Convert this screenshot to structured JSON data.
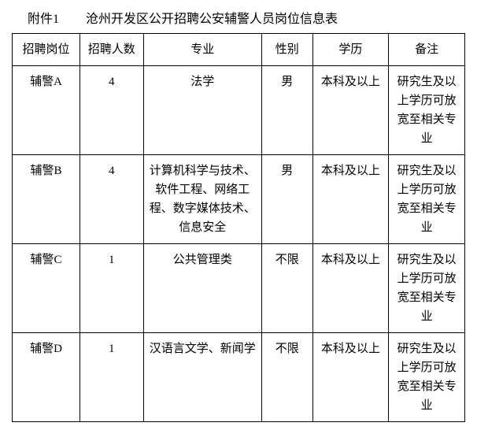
{
  "title_prefix": "附件1",
  "title_main": "沧州开发区公开招聘公安辅警人员岗位信息表",
  "columns": [
    "招聘岗位",
    "招聘人数",
    "专业",
    "性别",
    "学历",
    "备注"
  ],
  "rows": [
    {
      "position": "辅警A",
      "count": "4",
      "major": "法学",
      "gender": "男",
      "education": "本科及以上",
      "remark": "研究生及以上学历可放宽至相关专业"
    },
    {
      "position": "辅警B",
      "count": "4",
      "major": "计算机科学与技术、软件工程、网络工程、数字媒体技术、信息安全",
      "gender": "男",
      "education": "本科及以上",
      "remark": "研究生及以上学历可放宽至相关专业"
    },
    {
      "position": "辅警C",
      "count": "1",
      "major": "公共管理类",
      "gender": "不限",
      "education": "本科及以上",
      "remark": "研究生及以上学历可放宽至相关专业"
    },
    {
      "position": "辅警D",
      "count": "1",
      "major": "汉语言文学、新闻学",
      "gender": "不限",
      "education": "本科及以上",
      "remark": "研究生及以上学历可放宽至相关专业"
    }
  ]
}
